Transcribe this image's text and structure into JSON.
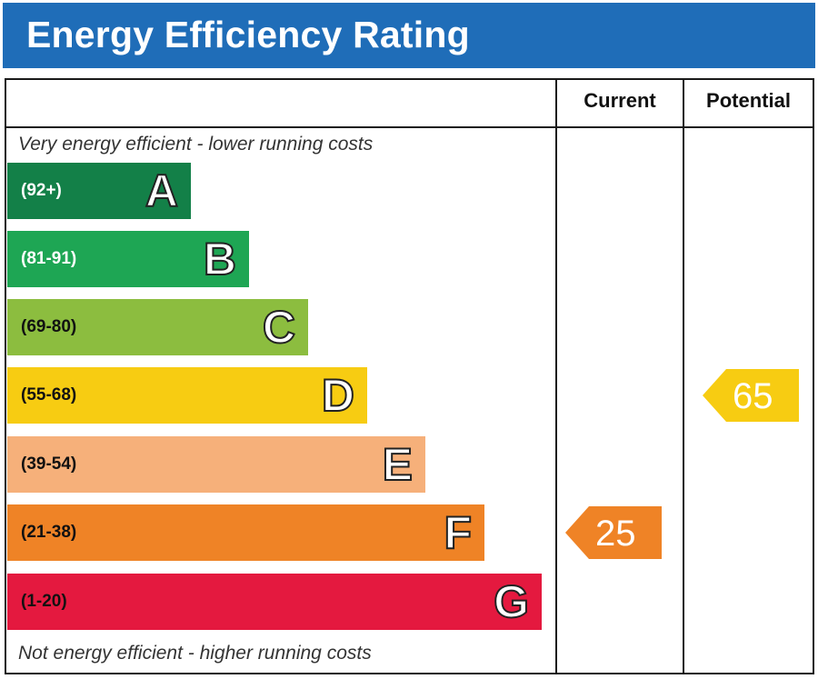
{
  "header": {
    "title": "Energy Efficiency Rating"
  },
  "columns": {
    "current": "Current",
    "potential": "Potential"
  },
  "notes": {
    "top": "Very energy efficient - lower running costs",
    "bottom": "Not energy efficient - higher running costs"
  },
  "chart_data": {
    "type": "bar",
    "categories": [
      "A",
      "B",
      "C",
      "D",
      "E",
      "F",
      "G"
    ],
    "ranges": [
      "(92+)",
      "(81-91)",
      "(69-80)",
      "(55-68)",
      "(39-54)",
      "(21-38)",
      "(1-20)"
    ],
    "band_colors": [
      "#138048",
      "#1ea654",
      "#8cbd3f",
      "#f7cc12",
      "#f6b07a",
      "#ef8326",
      "#e4193f"
    ],
    "range_text_colors": [
      "#ffffff",
      "#ffffff",
      "#111111",
      "#111111",
      "#111111",
      "#111111",
      "#111111"
    ],
    "current": {
      "value": "25",
      "band": "F",
      "color": "#ef8326"
    },
    "potential": {
      "value": "65",
      "band": "D",
      "color": "#f7cc12"
    }
  }
}
